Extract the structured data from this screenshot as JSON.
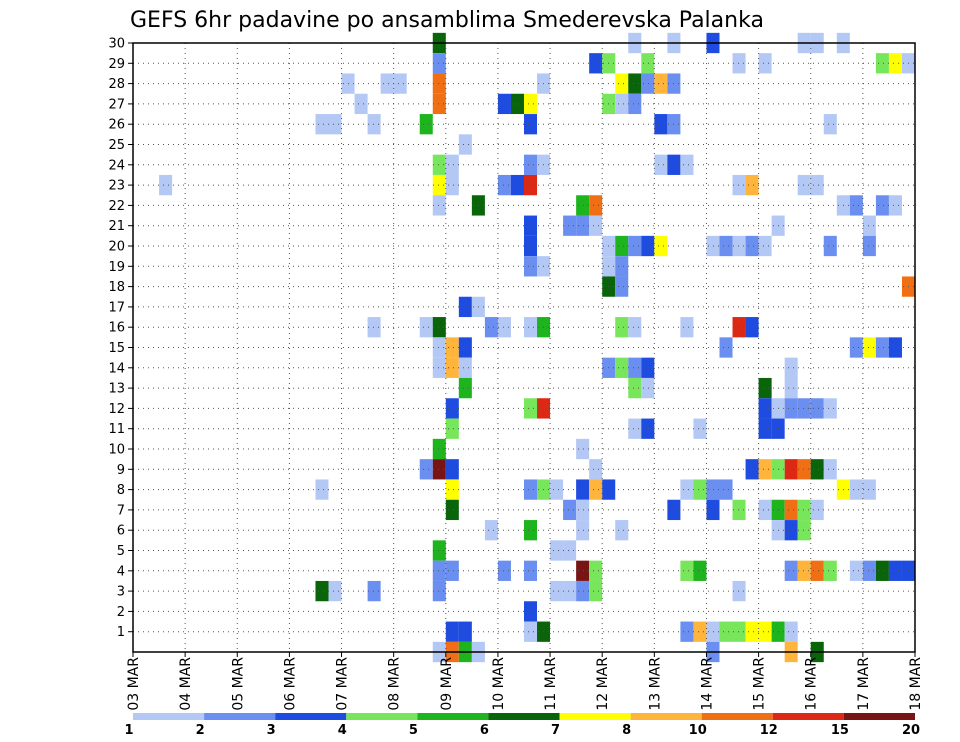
{
  "chart_data": {
    "type": "heatmap",
    "title": "GEFS 6hr padavine po ansamblima Smederevska Palanka",
    "y_ticks": [
      "1",
      "2",
      "3",
      "4",
      "5",
      "6",
      "7",
      "8",
      "9",
      "10",
      "11",
      "12",
      "13",
      "14",
      "15",
      "16",
      "17",
      "18",
      "19",
      "20",
      "21",
      "22",
      "23",
      "24",
      "25",
      "26",
      "27",
      "28",
      "29",
      "30"
    ],
    "x_ticks": [
      "03 MAR",
      "04 MAR",
      "05 MAR",
      "06 MAR",
      "07 MAR",
      "08 MAR",
      "09 MAR",
      "10 MAR",
      "11 MAR",
      "12 MAR",
      "13 MAR",
      "14 MAR",
      "15 MAR",
      "16 MAR",
      "17 MAR",
      "18 MAR"
    ],
    "x_range": [
      "03 MAR 00Z",
      "18 MAR 00Z"
    ],
    "y_range": [
      0,
      30
    ],
    "time_step_hours": 6,
    "grid": "dotted",
    "legend": {
      "position": "bottom",
      "colors": [
        "#b4c8f5",
        "#6b8ff0",
        "#1e4be0",
        "#78e65a",
        "#1eb41e",
        "#0a640a",
        "#ffff00",
        "#ffb43c",
        "#f06e14",
        "#dc2814",
        "#781414"
      ],
      "labels": [
        "1",
        "2",
        "3",
        "4",
        "5",
        "6",
        "7",
        "8",
        "10",
        "12",
        "15",
        "20"
      ]
    },
    "cells": [
      [
        30,
        "09 MAR 00Z",
        5
      ],
      [
        30,
        "12 MAR 18Z",
        0
      ],
      [
        30,
        "13 MAR 12Z",
        0
      ],
      [
        30,
        "14 MAR 06Z",
        2
      ],
      [
        30,
        "16 MAR 00Z",
        0
      ],
      [
        30,
        "16 MAR 06Z",
        0
      ],
      [
        30,
        "16 MAR 18Z",
        0
      ],
      [
        29,
        "09 MAR 00Z",
        1
      ],
      [
        29,
        "12 MAR 00Z",
        2
      ],
      [
        29,
        "12 MAR 06Z",
        3
      ],
      [
        29,
        "13 MAR 00Z",
        3
      ],
      [
        29,
        "14 MAR 18Z",
        0
      ],
      [
        29,
        "15 MAR 06Z",
        0
      ],
      [
        29,
        "17 MAR 12Z",
        3
      ],
      [
        29,
        "17 MAR 18Z",
        6
      ],
      [
        29,
        "18 MAR 00Z",
        0
      ],
      [
        28,
        "07 MAR 06Z",
        0
      ],
      [
        28,
        "08 MAR 00Z",
        0
      ],
      [
        28,
        "08 MAR 06Z",
        0
      ],
      [
        28,
        "09 MAR 00Z",
        8
      ],
      [
        28,
        "11 MAR 00Z",
        0
      ],
      [
        28,
        "12 MAR 12Z",
        6
      ],
      [
        28,
        "12 MAR 18Z",
        5
      ],
      [
        28,
        "13 MAR 00Z",
        1
      ],
      [
        28,
        "13 MAR 06Z",
        7
      ],
      [
        28,
        "13 MAR 12Z",
        1
      ],
      [
        27,
        "07 MAR 12Z",
        0
      ],
      [
        27,
        "09 MAR 00Z",
        8
      ],
      [
        27,
        "10 MAR 06Z",
        2
      ],
      [
        27,
        "10 MAR 12Z",
        5
      ],
      [
        27,
        "10 MAR 18Z",
        6
      ],
      [
        27,
        "12 MAR 06Z",
        3
      ],
      [
        27,
        "12 MAR 12Z",
        0
      ],
      [
        27,
        "12 MAR 18Z",
        1
      ],
      [
        26,
        "06 MAR 18Z",
        0
      ],
      [
        26,
        "07 MAR 00Z",
        0
      ],
      [
        26,
        "07 MAR 18Z",
        0
      ],
      [
        26,
        "08 MAR 18Z",
        4
      ],
      [
        26,
        "10 MAR 18Z",
        2
      ],
      [
        26,
        "13 MAR 06Z",
        2
      ],
      [
        26,
        "13 MAR 12Z",
        1
      ],
      [
        26,
        "16 MAR 12Z",
        0
      ],
      [
        25,
        "09 MAR 12Z",
        0
      ],
      [
        24,
        "09 MAR 00Z",
        3
      ],
      [
        24,
        "09 MAR 06Z",
        0
      ],
      [
        24,
        "10 MAR 18Z",
        1
      ],
      [
        24,
        "11 MAR 00Z",
        0
      ],
      [
        24,
        "13 MAR 06Z",
        0
      ],
      [
        24,
        "13 MAR 12Z",
        2
      ],
      [
        24,
        "13 MAR 18Z",
        0
      ],
      [
        23,
        "03 MAR 18Z",
        0
      ],
      [
        23,
        "09 MAR 00Z",
        6
      ],
      [
        23,
        "09 MAR 06Z",
        0
      ],
      [
        23,
        "10 MAR 06Z",
        1
      ],
      [
        23,
        "10 MAR 12Z",
        2
      ],
      [
        23,
        "10 MAR 18Z",
        9
      ],
      [
        23,
        "14 MAR 18Z",
        0
      ],
      [
        23,
        "15 MAR 00Z",
        7
      ],
      [
        23,
        "16 MAR 00Z",
        0
      ],
      [
        23,
        "16 MAR 06Z",
        0
      ],
      [
        22,
        "09 MAR 00Z",
        0
      ],
      [
        22,
        "09 MAR 18Z",
        5
      ],
      [
        22,
        "11 MAR 18Z",
        4
      ],
      [
        22,
        "12 MAR 00Z",
        8
      ],
      [
        22,
        "16 MAR 18Z",
        0
      ],
      [
        22,
        "17 MAR 00Z",
        1
      ],
      [
        22,
        "17 MAR 12Z",
        1
      ],
      [
        22,
        "17 MAR 18Z",
        0
      ],
      [
        21,
        "10 MAR 18Z",
        2
      ],
      [
        21,
        "11 MAR 12Z",
        1
      ],
      [
        21,
        "11 MAR 18Z",
        1
      ],
      [
        21,
        "12 MAR 00Z",
        0
      ],
      [
        21,
        "15 MAR 12Z",
        0
      ],
      [
        21,
        "17 MAR 06Z",
        0
      ],
      [
        20,
        "10 MAR 18Z",
        2
      ],
      [
        20,
        "12 MAR 06Z",
        0
      ],
      [
        20,
        "12 MAR 12Z",
        4
      ],
      [
        20,
        "12 MAR 18Z",
        1
      ],
      [
        20,
        "13 MAR 00Z",
        2
      ],
      [
        20,
        "13 MAR 06Z",
        6
      ],
      [
        20,
        "14 MAR 06Z",
        0
      ],
      [
        20,
        "14 MAR 12Z",
        1
      ],
      [
        20,
        "14 MAR 18Z",
        0
      ],
      [
        20,
        "15 MAR 00Z",
        1
      ],
      [
        20,
        "15 MAR 06Z",
        0
      ],
      [
        20,
        "16 MAR 12Z",
        1
      ],
      [
        20,
        "17 MAR 06Z",
        1
      ],
      [
        19,
        "10 MAR 18Z",
        1
      ],
      [
        19,
        "11 MAR 00Z",
        0
      ],
      [
        19,
        "12 MAR 06Z",
        0
      ],
      [
        19,
        "12 MAR 12Z",
        1
      ],
      [
        18,
        "12 MAR 06Z",
        5
      ],
      [
        18,
        "12 MAR 12Z",
        1
      ],
      [
        18,
        "18 MAR 00Z",
        8
      ],
      [
        17,
        "09 MAR 12Z",
        2
      ],
      [
        17,
        "09 MAR 18Z",
        0
      ],
      [
        16,
        "07 MAR 18Z",
        0
      ],
      [
        16,
        "08 MAR 18Z",
        0
      ],
      [
        16,
        "09 MAR 00Z",
        5
      ],
      [
        16,
        "10 MAR 00Z",
        1
      ],
      [
        16,
        "10 MAR 06Z",
        0
      ],
      [
        16,
        "10 MAR 18Z",
        0
      ],
      [
        16,
        "11 MAR 00Z",
        4
      ],
      [
        16,
        "12 MAR 12Z",
        3
      ],
      [
        16,
        "12 MAR 18Z",
        0
      ],
      [
        16,
        "13 MAR 18Z",
        0
      ],
      [
        16,
        "14 MAR 18Z",
        9
      ],
      [
        16,
        "15 MAR 00Z",
        2
      ],
      [
        15,
        "09 MAR 00Z",
        0
      ],
      [
        15,
        "09 MAR 06Z",
        7
      ],
      [
        15,
        "09 MAR 12Z",
        2
      ],
      [
        15,
        "14 MAR 12Z",
        1
      ],
      [
        15,
        "17 MAR 00Z",
        1
      ],
      [
        15,
        "17 MAR 06Z",
        6
      ],
      [
        15,
        "17 MAR 12Z",
        1
      ],
      [
        15,
        "17 MAR 18Z",
        2
      ],
      [
        14,
        "09 MAR 00Z",
        0
      ],
      [
        14,
        "09 MAR 06Z",
        7
      ],
      [
        14,
        "09 MAR 12Z",
        0
      ],
      [
        14,
        "12 MAR 06Z",
        1
      ],
      [
        14,
        "12 MAR 12Z",
        3
      ],
      [
        14,
        "12 MAR 18Z",
        1
      ],
      [
        14,
        "13 MAR 00Z",
        2
      ],
      [
        14,
        "15 MAR 18Z",
        0
      ],
      [
        13,
        "09 MAR 12Z",
        4
      ],
      [
        13,
        "12 MAR 18Z",
        3
      ],
      [
        13,
        "13 MAR 00Z",
        0
      ],
      [
        13,
        "15 MAR 06Z",
        5
      ],
      [
        13,
        "15 MAR 18Z",
        0
      ],
      [
        12,
        "09 MAR 06Z",
        2
      ],
      [
        12,
        "10 MAR 18Z",
        3
      ],
      [
        12,
        "11 MAR 00Z",
        9
      ],
      [
        12,
        "15 MAR 06Z",
        2
      ],
      [
        12,
        "15 MAR 12Z",
        0
      ],
      [
        12,
        "15 MAR 18Z",
        1
      ],
      [
        12,
        "16 MAR 00Z",
        1
      ],
      [
        12,
        "16 MAR 06Z",
        1
      ],
      [
        12,
        "16 MAR 12Z",
        0
      ],
      [
        11,
        "09 MAR 06Z",
        3
      ],
      [
        11,
        "12 MAR 18Z",
        0
      ],
      [
        11,
        "13 MAR 00Z",
        2
      ],
      [
        11,
        "14 MAR 00Z",
        0
      ],
      [
        11,
        "15 MAR 06Z",
        2
      ],
      [
        11,
        "15 MAR 12Z",
        2
      ],
      [
        10,
        "09 MAR 00Z",
        4
      ],
      [
        10,
        "11 MAR 18Z",
        0
      ],
      [
        9,
        "08 MAR 18Z",
        1
      ],
      [
        9,
        "09 MAR 00Z",
        10
      ],
      [
        9,
        "09 MAR 06Z",
        2
      ],
      [
        9,
        "12 MAR 00Z",
        0
      ],
      [
        9,
        "15 MAR 00Z",
        2
      ],
      [
        9,
        "15 MAR 06Z",
        7
      ],
      [
        9,
        "15 MAR 12Z",
        3
      ],
      [
        9,
        "15 MAR 18Z",
        9
      ],
      [
        9,
        "16 MAR 00Z",
        8
      ],
      [
        9,
        "16 MAR 06Z",
        5
      ],
      [
        9,
        "16 MAR 12Z",
        0
      ],
      [
        8,
        "06 MAR 18Z",
        0
      ],
      [
        8,
        "09 MAR 06Z",
        6
      ],
      [
        8,
        "10 MAR 18Z",
        1
      ],
      [
        8,
        "11 MAR 00Z",
        3
      ],
      [
        8,
        "11 MAR 06Z",
        0
      ],
      [
        8,
        "11 MAR 18Z",
        2
      ],
      [
        8,
        "12 MAR 00Z",
        7
      ],
      [
        8,
        "12 MAR 06Z",
        2
      ],
      [
        8,
        "13 MAR 18Z",
        0
      ],
      [
        8,
        "14 MAR 00Z",
        3
      ],
      [
        8,
        "14 MAR 06Z",
        1
      ],
      [
        8,
        "14 MAR 12Z",
        1
      ],
      [
        8,
        "16 MAR 18Z",
        6
      ],
      [
        8,
        "17 MAR 00Z",
        0
      ],
      [
        8,
        "17 MAR 06Z",
        0
      ],
      [
        7,
        "09 MAR 06Z",
        5
      ],
      [
        7,
        "11 MAR 12Z",
        1
      ],
      [
        7,
        "11 MAR 18Z",
        0
      ],
      [
        7,
        "13 MAR 12Z",
        2
      ],
      [
        7,
        "14 MAR 06Z",
        2
      ],
      [
        7,
        "14 MAR 18Z",
        3
      ],
      [
        7,
        "15 MAR 06Z",
        0
      ],
      [
        7,
        "15 MAR 12Z",
        4
      ],
      [
        7,
        "15 MAR 18Z",
        8
      ],
      [
        7,
        "16 MAR 00Z",
        3
      ],
      [
        7,
        "16 MAR 06Z",
        0
      ],
      [
        6,
        "10 MAR 00Z",
        0
      ],
      [
        6,
        "10 MAR 18Z",
        4
      ],
      [
        6,
        "11 MAR 18Z",
        0
      ],
      [
        6,
        "12 MAR 12Z",
        0
      ],
      [
        6,
        "15 MAR 12Z",
        0
      ],
      [
        6,
        "15 MAR 18Z",
        2
      ],
      [
        6,
        "16 MAR 00Z",
        3
      ],
      [
        5,
        "09 MAR 00Z",
        4
      ],
      [
        5,
        "11 MAR 06Z",
        0
      ],
      [
        5,
        "11 MAR 12Z",
        0
      ],
      [
        4,
        "09 MAR 00Z",
        1
      ],
      [
        4,
        "09 MAR 06Z",
        1
      ],
      [
        4,
        "10 MAR 06Z",
        1
      ],
      [
        4,
        "10 MAR 18Z",
        1
      ],
      [
        4,
        "11 MAR 18Z",
        10
      ],
      [
        4,
        "12 MAR 00Z",
        3
      ],
      [
        4,
        "13 MAR 18Z",
        3
      ],
      [
        4,
        "14 MAR 00Z",
        4
      ],
      [
        4,
        "15 MAR 18Z",
        1
      ],
      [
        4,
        "16 MAR 00Z",
        7
      ],
      [
        4,
        "16 MAR 06Z",
        8
      ],
      [
        4,
        "16 MAR 12Z",
        3
      ],
      [
        4,
        "17 MAR 00Z",
        0
      ],
      [
        4,
        "17 MAR 06Z",
        1
      ],
      [
        4,
        "17 MAR 12Z",
        5
      ],
      [
        4,
        "17 MAR 18Z",
        2
      ],
      [
        4,
        "18 MAR 00Z",
        2
      ],
      [
        3,
        "06 MAR 18Z",
        5
      ],
      [
        3,
        "07 MAR 00Z",
        0
      ],
      [
        3,
        "07 MAR 18Z",
        1
      ],
      [
        3,
        "09 MAR 00Z",
        1
      ],
      [
        3,
        "11 MAR 06Z",
        0
      ],
      [
        3,
        "11 MAR 12Z",
        0
      ],
      [
        3,
        "11 MAR 18Z",
        1
      ],
      [
        3,
        "12 MAR 00Z",
        3
      ],
      [
        3,
        "14 MAR 18Z",
        0
      ],
      [
        2,
        "10 MAR 18Z",
        2
      ],
      [
        1,
        "09 MAR 06Z",
        2
      ],
      [
        1,
        "09 MAR 12Z",
        2
      ],
      [
        1,
        "10 MAR 18Z",
        0
      ],
      [
        1,
        "11 MAR 00Z",
        5
      ],
      [
        1,
        "13 MAR 18Z",
        1
      ],
      [
        1,
        "14 MAR 00Z",
        7
      ],
      [
        1,
        "14 MAR 06Z",
        0
      ],
      [
        1,
        "14 MAR 12Z",
        3
      ],
      [
        1,
        "14 MAR 18Z",
        3
      ],
      [
        1,
        "15 MAR 00Z",
        6
      ],
      [
        1,
        "15 MAR 06Z",
        6
      ],
      [
        1,
        "15 MAR 12Z",
        4
      ],
      [
        1,
        "15 MAR 18Z",
        0
      ],
      [
        0,
        "09 MAR 00Z",
        0
      ],
      [
        0,
        "09 MAR 06Z",
        8
      ],
      [
        0,
        "09 MAR 12Z",
        4
      ],
      [
        0,
        "09 MAR 18Z",
        0
      ],
      [
        0,
        "14 MAR 06Z",
        1
      ],
      [
        0,
        "15 MAR 18Z",
        7
      ],
      [
        0,
        "16 MAR 06Z",
        5
      ]
    ]
  }
}
